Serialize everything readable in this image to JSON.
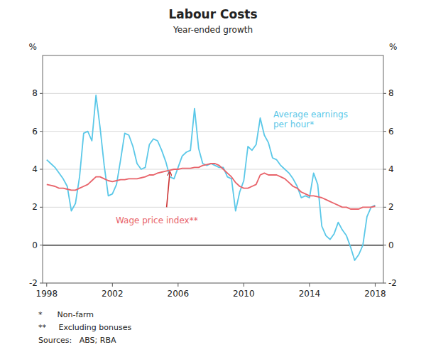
{
  "chart_data": {
    "type": "line",
    "title": "Labour Costs",
    "subtitle": "Year-ended growth",
    "y_label": "%",
    "y2_label": "%",
    "xlim": [
      1997.75,
      2018.5
    ],
    "xticks": [
      1998,
      2002,
      2006,
      2010,
      2014,
      2018
    ],
    "ylim": [
      -2,
      10
    ],
    "yticks": [
      -2,
      0,
      2,
      4,
      6,
      8
    ],
    "y2lim": [
      -2,
      10
    ],
    "y2ticks": [
      -2,
      0,
      2,
      4,
      6,
      8
    ],
    "grid": true,
    "x": [
      1998.0,
      1998.25,
      1998.5,
      1998.75,
      1999.0,
      1999.25,
      1999.5,
      1999.75,
      2000.0,
      2000.25,
      2000.5,
      2000.75,
      2001.0,
      2001.25,
      2001.5,
      2001.75,
      2002.0,
      2002.25,
      2002.5,
      2002.75,
      2003.0,
      2003.25,
      2003.5,
      2003.75,
      2004.0,
      2004.25,
      2004.5,
      2004.75,
      2005.0,
      2005.25,
      2005.5,
      2005.75,
      2006.0,
      2006.25,
      2006.5,
      2006.75,
      2007.0,
      2007.25,
      2007.5,
      2007.75,
      2008.0,
      2008.25,
      2008.5,
      2008.75,
      2009.0,
      2009.25,
      2009.5,
      2009.75,
      2010.0,
      2010.25,
      2010.5,
      2010.75,
      2011.0,
      2011.25,
      2011.5,
      2011.75,
      2012.0,
      2012.25,
      2012.5,
      2012.75,
      2013.0,
      2013.25,
      2013.5,
      2013.75,
      2014.0,
      2014.25,
      2014.5,
      2014.75,
      2015.0,
      2015.25,
      2015.5,
      2015.75,
      2016.0,
      2016.25,
      2016.5,
      2016.75,
      2017.0,
      2017.25,
      2017.5,
      2017.75,
      2018.0
    ],
    "series": [
      {
        "color": "#5bc8e8",
        "values": [
          4.5,
          4.3,
          4.1,
          3.8,
          3.5,
          3.1,
          1.8,
          2.2,
          3.6,
          5.9,
          6.0,
          5.5,
          7.9,
          6.2,
          4.2,
          2.6,
          2.7,
          3.2,
          4.5,
          5.9,
          5.8,
          5.2,
          4.3,
          4.0,
          4.1,
          5.3,
          5.6,
          5.5,
          5.0,
          4.4,
          3.6,
          3.5,
          4.1,
          4.7,
          4.9,
          5.0,
          7.2,
          5.1,
          4.3,
          4.2,
          4.3,
          4.2,
          4.1,
          4.1,
          3.6,
          3.5,
          1.8,
          2.8,
          3.4,
          5.2,
          5.0,
          5.3,
          6.7,
          5.8,
          5.4,
          4.6,
          4.5,
          4.2,
          4.0,
          3.8,
          3.5,
          3.1,
          2.5,
          2.6,
          2.5,
          3.8,
          3.2,
          1.0,
          0.5,
          0.3,
          0.6,
          1.2,
          0.8,
          0.5,
          -0.1,
          -0.8,
          -0.5,
          0.0,
          1.5,
          2.0,
          2.1
        ]
      },
      {
        "color": "#e8636a",
        "values": [
          3.2,
          3.15,
          3.1,
          3.0,
          3.0,
          2.95,
          2.9,
          2.9,
          3.0,
          3.1,
          3.2,
          3.4,
          3.6,
          3.6,
          3.5,
          3.4,
          3.35,
          3.4,
          3.45,
          3.45,
          3.5,
          3.5,
          3.5,
          3.55,
          3.6,
          3.7,
          3.7,
          3.8,
          3.85,
          3.9,
          3.95,
          4.0,
          4.0,
          4.05,
          4.05,
          4.05,
          4.1,
          4.1,
          4.2,
          4.25,
          4.3,
          4.3,
          4.2,
          4.0,
          3.8,
          3.6,
          3.3,
          3.1,
          3.0,
          3.0,
          3.1,
          3.2,
          3.7,
          3.8,
          3.7,
          3.7,
          3.7,
          3.6,
          3.5,
          3.3,
          3.1,
          3.0,
          2.8,
          2.7,
          2.6,
          2.6,
          2.55,
          2.5,
          2.4,
          2.3,
          2.2,
          2.1,
          2.0,
          2.0,
          1.9,
          1.9,
          1.9,
          2.0,
          2.0,
          2.0,
          2.05
        ]
      }
    ],
    "annotations": [
      {
        "text": "Wage price index**",
        "x": 2002.2,
        "y": 1.6,
        "color": "#e8636a"
      },
      {
        "text": "Average earnings\nper hour*",
        "x": 2011.8,
        "y": 7.2,
        "color": "#5bc8e8"
      }
    ],
    "arrows": [
      {
        "from_x": 2005.3,
        "from_y": 2.0,
        "to_x": 2005.5,
        "to_y": 3.88,
        "color": "#cc3333"
      }
    ],
    "footnotes": [
      "*      Non-farm",
      "**     Excluding bonuses",
      "Sources:   ABS; RBA"
    ]
  }
}
